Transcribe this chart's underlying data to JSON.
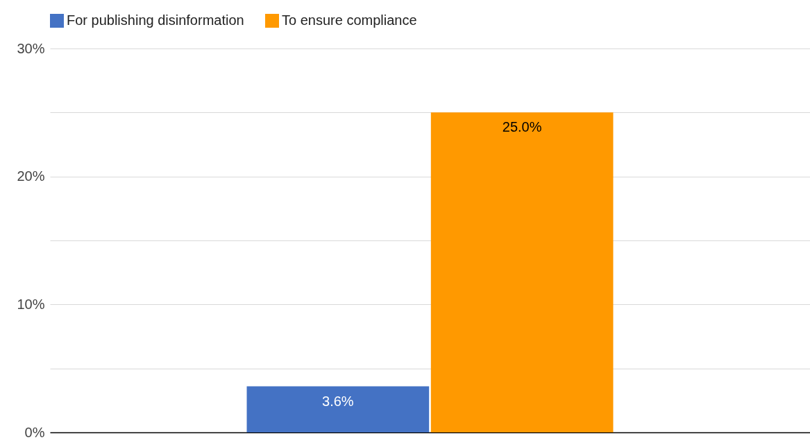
{
  "chart_data": {
    "type": "bar",
    "categories": [
      null
    ],
    "series": [
      {
        "name": "For publishing disinformation",
        "color": "#4472c4",
        "values": [
          3.6
        ],
        "value_labels": [
          "3.6%"
        ]
      },
      {
        "name": "To ensure compliance",
        "color": "#ff9900",
        "values": [
          25.0
        ],
        "value_labels": [
          "25.0%"
        ]
      }
    ],
    "ylim": [
      0,
      30
    ],
    "yticks": [
      {
        "value": 0,
        "label": "0%"
      },
      {
        "value": 5,
        "label": null
      },
      {
        "value": 10,
        "label": "10%"
      },
      {
        "value": 15,
        "label": null
      },
      {
        "value": 20,
        "label": "20%"
      },
      {
        "value": 25,
        "label": null
      },
      {
        "value": 30,
        "label": "30%"
      }
    ],
    "grid": true,
    "legend": "top"
  }
}
